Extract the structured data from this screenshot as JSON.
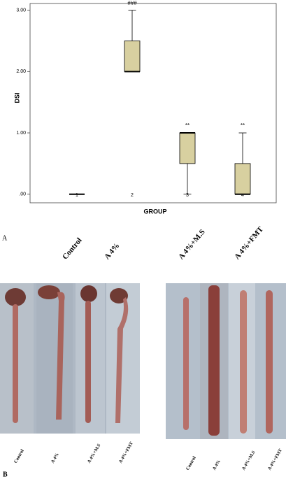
{
  "chart_data": {
    "type": "boxplot",
    "xlabel": "GROUP",
    "ylabel": "DSI",
    "categories": [
      "1",
      "2",
      "3",
      "4"
    ],
    "boxes": [
      {
        "min": 0,
        "q1": 0,
        "median": 0,
        "q3": 0,
        "max": 0
      },
      {
        "min": 2,
        "q1": 2,
        "median": 2,
        "q3": 2.5,
        "max": 3
      },
      {
        "min": 0,
        "q1": 0.5,
        "median": 1,
        "q3": 1,
        "max": 1
      },
      {
        "min": 0,
        "q1": 0,
        "median": 0,
        "q3": 0.5,
        "max": 1
      }
    ],
    "annotations": [
      null,
      "###",
      "**",
      "**"
    ],
    "color": "#d8d0a0",
    "ylim": [
      -0.14,
      3.11
    ],
    "yticks": [
      {
        "value": 0,
        "label": ".00"
      },
      {
        "value": 1,
        "label": "1.00"
      },
      {
        "value": 2,
        "label": "2.00"
      },
      {
        "value": 3,
        "label": "3.00"
      }
    ]
  },
  "figure": {
    "panel_a": "A",
    "panel_b": "B",
    "group_labels": [
      "Control",
      "A 4%",
      "A 4%+M.S",
      "A 4%+FMT"
    ],
    "photo_captions_left": [
      "Control",
      "A 4%",
      "A 4%+M.S",
      "A 4%+FMT"
    ],
    "photo_captions_right": [
      "Control",
      "A 4%",
      "A 4%+M.S",
      "A 4%+FMT"
    ]
  }
}
